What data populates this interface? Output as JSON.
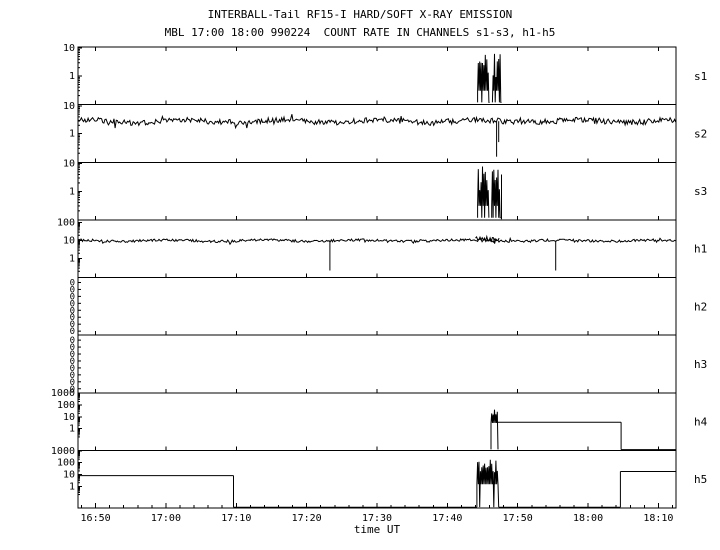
{
  "chart_data": {
    "type": "line",
    "title": "INTERBALL-Tail RF15-I HARD/SOFT X-RAY EMISSION",
    "subtitle": "MBL 17:00 18:00 990224  COUNT RATE IN CHANNELS s1-s3, h1-h5",
    "xlabel": "time UT",
    "x_ticks": [
      "16:50",
      "17:00",
      "17:10",
      "17:20",
      "17:30",
      "17:40",
      "17:50",
      "18:00",
      "18:10"
    ],
    "x_tick_minutes": [
      0,
      10,
      20,
      30,
      40,
      50,
      60,
      70,
      80
    ],
    "t_range": [
      -2.5,
      82.5
    ],
    "grid": false,
    "legend": "none",
    "ylabel": "COUNT RATE",
    "panels": [
      {
        "label": "s1",
        "log": true,
        "ylim": [
          0.095,
          11
        ],
        "yticks": [
          {
            "v": 10,
            "t": "10"
          },
          {
            "v": 1,
            "t": "1"
          }
        ],
        "segments": [
          {
            "kind": "burst",
            "t0": 54.3,
            "t1": 56.0,
            "vmin": 0.3,
            "vmax": 8,
            "dips": true,
            "seed": 11
          },
          {
            "kind": "burst",
            "t0": 56.4,
            "t1": 57.7,
            "vmin": 0.3,
            "vmax": 7,
            "dips": true,
            "seed": 12
          }
        ]
      },
      {
        "label": "s2",
        "log": true,
        "ylim": [
          0.095,
          11
        ],
        "yticks": [
          {
            "v": 10,
            "t": "10"
          },
          {
            "v": 1,
            "t": "1"
          }
        ],
        "segments": [
          {
            "kind": "noise",
            "t0": -2.5,
            "t1": 82.5,
            "mean": 2.8,
            "amp": 0.1,
            "seed": 21
          },
          {
            "kind": "vline",
            "t": 57.0,
            "v0": 0.15,
            "v1": 2.8
          },
          {
            "kind": "vline",
            "t": 57.3,
            "v0": 0.5,
            "v1": 2.8
          }
        ]
      },
      {
        "label": "s3",
        "log": true,
        "ylim": [
          0.095,
          11
        ],
        "yticks": [
          {
            "v": 10,
            "t": "10"
          },
          {
            "v": 1,
            "t": "1"
          }
        ],
        "segments": [
          {
            "kind": "burst",
            "t0": 54.3,
            "t1": 55.9,
            "vmin": 0.3,
            "vmax": 9,
            "dips": true,
            "seed": 31
          },
          {
            "kind": "burst",
            "t0": 56.3,
            "t1": 57.6,
            "vmin": 0.3,
            "vmax": 8,
            "dips": true,
            "seed": 32
          },
          {
            "kind": "vline",
            "t": 57.7,
            "v0": 0.1,
            "v1": 4
          }
        ]
      },
      {
        "label": "h1",
        "log": true,
        "ylim": [
          0.09,
          143
        ],
        "yticks": [
          {
            "v": 100,
            "t": "100"
          },
          {
            "v": 10,
            "t": "10"
          },
          {
            "v": 1,
            "t": "1"
          }
        ],
        "segments": [
          {
            "kind": "noise",
            "t0": -2.5,
            "t1": 82.5,
            "mean": 10,
            "amp": 0.07,
            "seed": 41
          },
          {
            "kind": "noise",
            "t0": 54.0,
            "t1": 57.5,
            "mean": 14,
            "amp": 0.12,
            "seed": 42
          },
          {
            "kind": "vline",
            "t": 33.3,
            "v0": 0.22,
            "v1": 9
          },
          {
            "kind": "vline",
            "t": 65.4,
            "v0": 0.22,
            "v1": 9
          }
        ]
      },
      {
        "label": "h2",
        "log": true,
        "ylim": null,
        "ytick_texts": [
          "0",
          "0",
          "0",
          "0",
          "0",
          "0",
          "0",
          "0"
        ],
        "segments": []
      },
      {
        "label": "h3",
        "log": true,
        "ylim": null,
        "ytick_texts": [
          "0",
          "0",
          "0",
          "0",
          "0",
          "0",
          "0",
          "0"
        ],
        "segments": []
      },
      {
        "label": "h4",
        "log": true,
        "ylim": [
          0.0145,
          1100
        ],
        "yticks": [
          {
            "v": 1000,
            "t": "1000"
          },
          {
            "v": 100,
            "t": "100"
          },
          {
            "v": 10,
            "t": "10"
          },
          {
            "v": 1,
            "t": "1"
          }
        ],
        "segments": [
          {
            "kind": "burst",
            "t0": 56.2,
            "t1": 57.2,
            "vmin": 3,
            "vmax": 200,
            "dips": false,
            "seed": 51
          },
          {
            "kind": "flat",
            "t0": 57.2,
            "t1": 74.7,
            "v": 3.5
          },
          {
            "kind": "vline",
            "t": 74.7,
            "v0": 0.017,
            "v1": 3.5
          },
          {
            "kind": "flat",
            "t0": 74.7,
            "t1": 82.5,
            "v": 0.017
          }
        ]
      },
      {
        "label": "h5",
        "log": true,
        "ylim": [
          0.0145,
          1100
        ],
        "yticks": [
          {
            "v": 1000,
            "t": "1000"
          },
          {
            "v": 100,
            "t": "100"
          },
          {
            "v": 10,
            "t": "10"
          },
          {
            "v": 1,
            "t": "1"
          }
        ],
        "segments": [
          {
            "kind": "flat",
            "t0": -2.5,
            "t1": 19.6,
            "v": 8
          },
          {
            "kind": "vline",
            "t": 19.6,
            "v0": 0.017,
            "v1": 8
          },
          {
            "kind": "flat",
            "t0": 19.6,
            "t1": 54.2,
            "v": 0.017
          },
          {
            "kind": "burst",
            "t0": 54.2,
            "t1": 57.3,
            "vmin": 1.5,
            "vmax": 300,
            "dips": true,
            "seed": 61
          },
          {
            "kind": "flat",
            "t0": 57.3,
            "t1": 74.6,
            "v": 0.017
          },
          {
            "kind": "vline",
            "t": 74.6,
            "v0": 0.017,
            "v1": 18
          },
          {
            "kind": "flat",
            "t0": 74.6,
            "t1": 82.5,
            "v": 18
          }
        ]
      }
    ]
  }
}
